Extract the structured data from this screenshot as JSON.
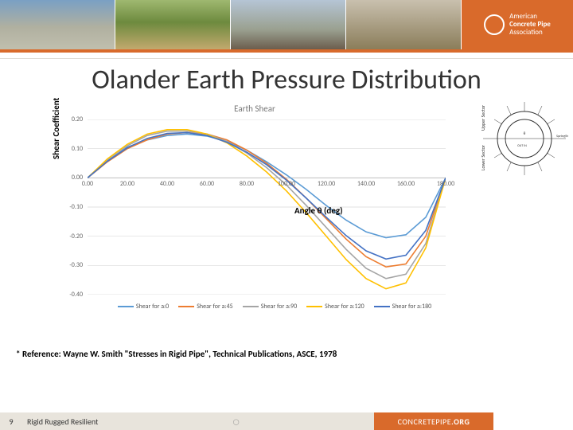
{
  "header": {
    "org_line1": "American",
    "org_line2": "Concrete Pipe",
    "org_line3": "Association",
    "accent_color": "#d96a2b"
  },
  "title": "Olander Earth Pressure Distribution",
  "chart": {
    "type": "line",
    "title": "Earth Shear",
    "ylabel": "Shear Coefficient",
    "xlabel": "Angle θ (deg)",
    "xlim": [
      0,
      180
    ],
    "xtick_step": 20,
    "ylim": [
      -0.4,
      0.2
    ],
    "ytick_step": 0.1,
    "yticks_text": [
      "0.20",
      "0.10",
      "0.00",
      "-0.10",
      "-0.20",
      "-0.30",
      "-0.40"
    ],
    "xticks_text": [
      "0.00",
      "20.00",
      "40.00",
      "60.00",
      "80.00",
      "100.00",
      "120.00",
      "140.00",
      "160.00",
      "180.00"
    ],
    "grid_color": "#d9d9d9",
    "axis_color": "#bfbfbf",
    "line_width": 1.6,
    "background_color": "#ffffff",
    "series": [
      {
        "label": "Shear for a:0",
        "color": "#5b9bd5",
        "x": [
          0,
          10,
          20,
          30,
          40,
          50,
          60,
          70,
          80,
          90,
          100,
          110,
          120,
          130,
          140,
          150,
          160,
          170,
          180
        ],
        "y": [
          0,
          0.06,
          0.105,
          0.13,
          0.145,
          0.15,
          0.143,
          0.125,
          0.095,
          0.055,
          0.01,
          -0.04,
          -0.095,
          -0.145,
          -0.185,
          -0.205,
          -0.195,
          -0.135,
          0
        ]
      },
      {
        "label": "Shear for a:45",
        "color": "#ed7d31",
        "x": [
          0,
          10,
          20,
          30,
          40,
          50,
          60,
          70,
          80,
          90,
          100,
          110,
          120,
          130,
          140,
          150,
          160,
          170,
          180
        ],
        "y": [
          0,
          0.055,
          0.1,
          0.13,
          0.15,
          0.155,
          0.15,
          0.13,
          0.095,
          0.05,
          -0.005,
          -0.07,
          -0.14,
          -0.21,
          -0.27,
          -0.305,
          -0.295,
          -0.2,
          0
        ]
      },
      {
        "label": "Shear for a:90",
        "color": "#a5a5a5",
        "x": [
          0,
          10,
          20,
          30,
          40,
          50,
          60,
          70,
          80,
          90,
          100,
          110,
          120,
          130,
          140,
          150,
          160,
          170,
          180
        ],
        "y": [
          0,
          0.06,
          0.11,
          0.145,
          0.16,
          0.16,
          0.15,
          0.125,
          0.085,
          0.035,
          -0.025,
          -0.095,
          -0.17,
          -0.245,
          -0.31,
          -0.345,
          -0.33,
          -0.225,
          0
        ]
      },
      {
        "label": "Shear for a:120",
        "color": "#ffc000",
        "x": [
          0,
          10,
          20,
          30,
          40,
          50,
          60,
          70,
          80,
          90,
          100,
          110,
          120,
          130,
          140,
          150,
          160,
          170,
          180
        ],
        "y": [
          0,
          0.065,
          0.115,
          0.15,
          0.165,
          0.165,
          0.15,
          0.12,
          0.075,
          0.02,
          -0.045,
          -0.12,
          -0.2,
          -0.28,
          -0.345,
          -0.38,
          -0.36,
          -0.24,
          0
        ]
      },
      {
        "label": "Shear for a:180",
        "color": "#4472c4",
        "x": [
          0,
          10,
          20,
          30,
          40,
          50,
          60,
          70,
          80,
          90,
          100,
          110,
          120,
          130,
          140,
          150,
          160,
          170,
          180
        ],
        "y": [
          0,
          0.057,
          0.103,
          0.135,
          0.152,
          0.155,
          0.145,
          0.122,
          0.088,
          0.045,
          -0.008,
          -0.07,
          -0.135,
          -0.198,
          -0.25,
          -0.278,
          -0.265,
          -0.18,
          0
        ]
      }
    ]
  },
  "diagram": {
    "upper_label": "Upper Sector",
    "lower_label": "Lower Sector",
    "springline": "Springline"
  },
  "reference": "* Reference: Wayne W. Smith \"Stresses in Rigid Pipe\", Technical Publications, ASCE, 1978",
  "footer": {
    "page": "9",
    "tagline": "Rigid Rugged Resilient",
    "url_light": "CONCRETEPIPE",
    "url_bold": ".ORG"
  }
}
